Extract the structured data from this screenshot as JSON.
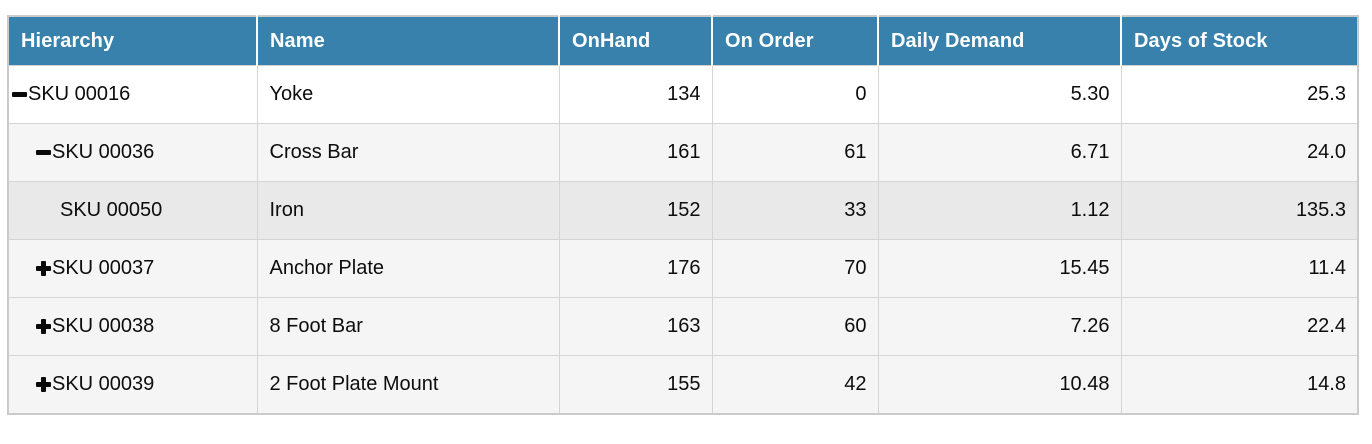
{
  "table": {
    "columns": [
      {
        "label": "Hierarchy"
      },
      {
        "label": "Name"
      },
      {
        "label": "OnHand"
      },
      {
        "label": "On Order"
      },
      {
        "label": "Daily Demand"
      },
      {
        "label": "Days of Stock"
      }
    ],
    "rows": [
      {
        "sku": "SKU 00016",
        "toggle": "collapse",
        "level": 0,
        "name": "Yoke",
        "on_hand": "134",
        "on_order": "0",
        "daily_demand": "5.30",
        "days_of_stock": "25.3"
      },
      {
        "sku": "SKU 00036",
        "toggle": "collapse",
        "level": 1,
        "name": "Cross Bar",
        "on_hand": "161",
        "on_order": "61",
        "daily_demand": "6.71",
        "days_of_stock": "24.0"
      },
      {
        "sku": "SKU 00050",
        "toggle": "none",
        "level": 2,
        "name": "Iron",
        "on_hand": "152",
        "on_order": "33",
        "daily_demand": "1.12",
        "days_of_stock": "135.3"
      },
      {
        "sku": "SKU 00037",
        "toggle": "expand",
        "level": 1,
        "name": "Anchor Plate",
        "on_hand": "176",
        "on_order": "70",
        "daily_demand": "15.45",
        "days_of_stock": "11.4"
      },
      {
        "sku": "SKU 00038",
        "toggle": "expand",
        "level": 1,
        "name": "8 Foot Bar",
        "on_hand": "163",
        "on_order": "60",
        "daily_demand": "7.26",
        "days_of_stock": "22.4"
      },
      {
        "sku": "SKU 00039",
        "toggle": "expand",
        "level": 1,
        "name": "2 Foot Plate Mount",
        "on_hand": "155",
        "on_order": "42",
        "daily_demand": "10.48",
        "days_of_stock": "14.8"
      }
    ],
    "colors": {
      "header_bg": "#3781ac",
      "header_text": "#ffffff",
      "row_level0_bg": "#ffffff",
      "row_level1_bg": "#f5f5f5",
      "row_level2_bg": "#e9e9e9",
      "border": "#cbcbcb",
      "cell_border": "#d5d5d5",
      "text": "#0d0d0d"
    }
  }
}
